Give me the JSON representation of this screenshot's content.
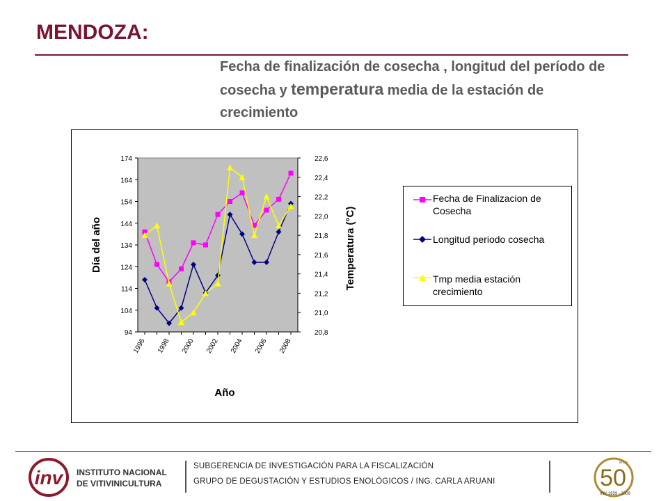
{
  "header": {
    "title": "MENDOZA:",
    "subtitle_parts": [
      "Fecha de finalización de cosecha , longitud del período de cosecha y ",
      "temperatura",
      " media de la estación de crecimiento"
    ]
  },
  "footer": {
    "org_line1": "INSTITUTO NACIONAL",
    "org_line2": "DE VITIVINICULTURA",
    "line1": "SUBGERENCIA DE INVESTIGACIÓN PARA LA FISCALIZACIÓN",
    "line2": "GRUPO DE DEGUSTACIÓN Y ESTUDIOS ENOLÓGICOS / ING. CARLA ARUANI",
    "anniv_number": "50",
    "anniv_small": "años",
    "anniv_years": "INV 1959 - 2009"
  },
  "colors": {
    "brand": "#7a1530",
    "plot_bg": "#c0c0c0",
    "series_fecha": "#ff00ff",
    "series_longitud": "#000080",
    "series_tmp": "#ffff00"
  },
  "chart_data": {
    "type": "line",
    "xlabel": "Año",
    "ylabel": "Día del año",
    "y2label": "Temperatura (°C)",
    "x": [
      1996,
      1997,
      1998,
      1999,
      2000,
      2001,
      2002,
      2003,
      2004,
      2005,
      2006,
      2007,
      2008
    ],
    "x_tick_labels": [
      "1996",
      "1998",
      "2000",
      "2002",
      "2004",
      "2006",
      "2008"
    ],
    "ylim": [
      94,
      174
    ],
    "y_ticks": [
      "174",
      "164",
      "154",
      "144",
      "134",
      "124",
      "114",
      "104",
      "94"
    ],
    "y2lim": [
      20.8,
      22.6
    ],
    "y2_ticks": [
      "22,6",
      "22,4",
      "22,2",
      "22,0",
      "21,8",
      "21,6",
      "21,4",
      "21,2",
      "21,0",
      "20,8"
    ],
    "grid": false,
    "legend_position": "right",
    "series": [
      {
        "name": "Fecha de Finalizacion de Cosecha",
        "axis": "left",
        "marker": "square",
        "values": [
          140,
          125,
          117,
          123,
          135,
          134,
          148,
          154,
          158,
          143,
          150,
          155,
          167
        ]
      },
      {
        "name": "Longitud periodo cosecha",
        "axis": "left",
        "marker": "diamond",
        "values": [
          118,
          105,
          98,
          105,
          125,
          112,
          120,
          148,
          139,
          126,
          126,
          140,
          153
        ]
      },
      {
        "name": "Tmp media estación crecimiento",
        "axis": "right",
        "marker": "triangle",
        "values": [
          21.8,
          21.9,
          21.3,
          20.9,
          21.0,
          21.2,
          21.3,
          22.5,
          22.4,
          21.8,
          22.2,
          21.9,
          22.1
        ]
      }
    ]
  }
}
